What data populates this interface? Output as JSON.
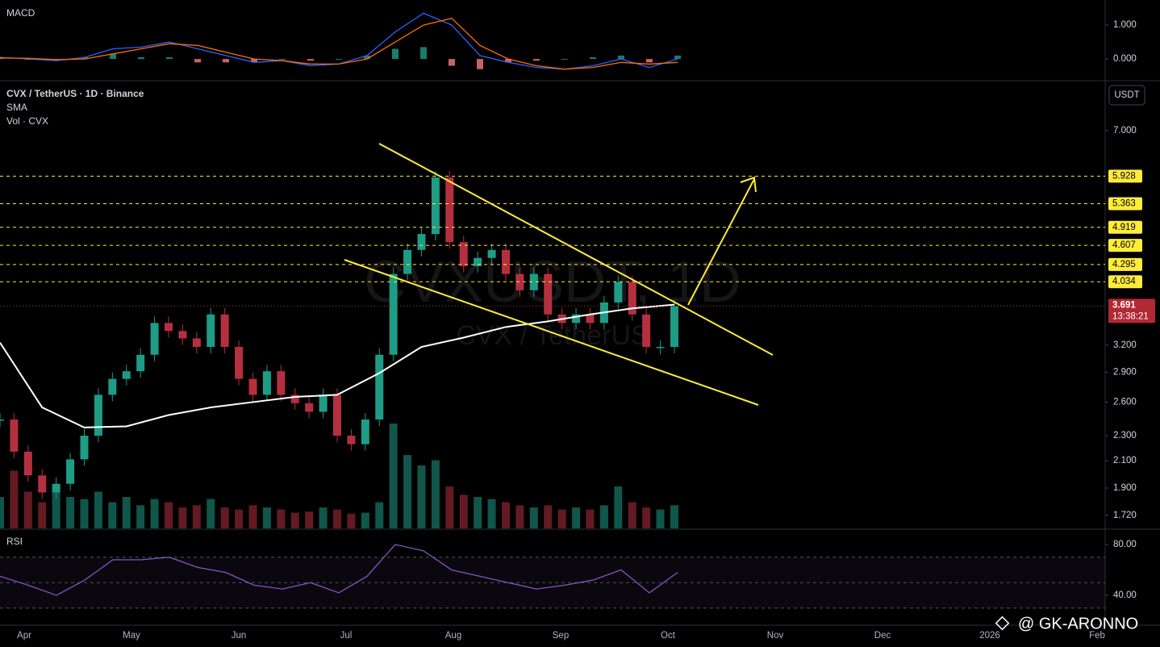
{
  "chart_data": {
    "type": "candlestick",
    "title": "CVX / TetherUS · 1D · Binance",
    "indicator_labels": [
      "SMA",
      "Vol · CVX"
    ],
    "currency_button": "USDT",
    "watermark": "CVXUSDT, 1D",
    "watermark_subtitle": "CVX / TetherUS",
    "credit": "@ GK-ARONNO",
    "months": [
      "Apr",
      "May",
      "Jun",
      "Jul",
      "Aug",
      "Sep",
      "Oct",
      "Nov",
      "Dec",
      "2026",
      "Feb"
    ],
    "up_color": "#1e9c86",
    "down_color": "#b5303f",
    "price": {
      "log_scale": true,
      "ylim": [
        1.64,
        8.4
      ],
      "yticks": [
        {
          "value": 7,
          "label": "7.000"
        },
        {
          "value": 3.2,
          "label": "3.200"
        },
        {
          "value": 2.9,
          "label": "2.900"
        },
        {
          "value": 2.6,
          "label": "2.600"
        },
        {
          "value": 2.3,
          "label": "2.300"
        },
        {
          "value": 2.1,
          "label": "2.100"
        },
        {
          "value": 1.9,
          "label": "1.900"
        },
        {
          "value": 1.72,
          "label": "1.720"
        }
      ],
      "levels": [
        5.928,
        5.363,
        4.919,
        4.607,
        4.295,
        4.034
      ],
      "level_color": "#ffeb3b",
      "last_price": 3.691,
      "countdown": "13:38:21",
      "close": [
        2.44,
        2.17,
        1.99,
        1.87,
        1.93,
        2.11,
        2.3,
        2.67,
        2.83,
        2.91,
        3.09,
        3.47,
        3.37,
        3.28,
        3.18,
        3.58,
        3.18,
        2.83,
        2.67,
        2.91,
        2.67,
        2.59,
        2.51,
        2.67,
        2.3,
        2.23,
        2.44,
        3.09,
        4.15,
        4.53,
        4.8,
        5.9,
        4.66,
        4.27,
        4.4,
        4.53,
        4.15,
        3.91,
        4.15,
        3.58,
        3.47,
        3.58,
        3.47,
        3.74,
        4.03,
        3.58,
        3.18,
        3.18,
        3.69
      ],
      "volume": [
        30,
        55,
        35,
        25,
        40,
        30,
        28,
        35,
        25,
        30,
        22,
        28,
        25,
        20,
        22,
        28,
        20,
        18,
        22,
        20,
        18,
        15,
        16,
        20,
        18,
        14,
        15,
        25,
        100,
        70,
        60,
        65,
        40,
        32,
        30,
        28,
        25,
        22,
        20,
        22,
        18,
        20,
        18,
        22,
        40,
        25,
        20,
        18,
        22
      ],
      "sma": [
        3.23,
        2.55,
        2.37,
        2.38,
        2.48,
        2.55,
        2.6,
        2.65,
        2.67,
        2.89,
        3.18,
        3.29,
        3.42,
        3.49,
        3.58,
        3.66,
        3.71
      ],
      "sma_color": "#ffffff"
    },
    "macd": {
      "title": "MACD",
      "ylim": [
        -0.64,
        1.74
      ],
      "yticks": [
        {
          "value": 1,
          "label": "1.000"
        },
        {
          "value": 0,
          "label": "0.000"
        }
      ],
      "series": [
        {
          "name": "MACD",
          "color": "#2962ff",
          "values": [
            0.05,
            0.0,
            -0.05,
            0.05,
            0.3,
            0.35,
            0.5,
            0.3,
            0.1,
            -0.1,
            -0.05,
            -0.2,
            -0.15,
            0.1,
            0.8,
            1.35,
            1.0,
            0.1,
            -0.1,
            -0.25,
            -0.3,
            -0.2,
            0.0,
            -0.25,
            0.0
          ]
        },
        {
          "name": "Signal",
          "color": "#ff6d00",
          "values": [
            0.03,
            0.02,
            -0.02,
            0.0,
            0.15,
            0.3,
            0.45,
            0.4,
            0.2,
            0.0,
            -0.05,
            -0.15,
            -0.15,
            0.0,
            0.5,
            1.0,
            1.2,
            0.4,
            0.0,
            -0.2,
            -0.3,
            -0.25,
            -0.1,
            -0.15,
            -0.1
          ]
        }
      ],
      "histogram": [
        0.02,
        -0.02,
        -0.03,
        0.05,
        0.15,
        0.05,
        0.05,
        -0.1,
        -0.1,
        -0.1,
        0,
        -0.05,
        0,
        0.1,
        0.3,
        0.35,
        -0.2,
        -0.3,
        -0.1,
        -0.05,
        0,
        0.05,
        0.1,
        -0.1,
        0.1
      ]
    },
    "rsi": {
      "title": "RSI",
      "ylim": [
        16.5,
        91.4
      ],
      "yticks": [
        {
          "value": 80,
          "label": "80.00"
        },
        {
          "value": 40,
          "label": "40.00"
        }
      ],
      "bands": [
        70,
        50,
        30
      ],
      "color": "#7e57c2",
      "values": [
        55,
        48,
        40,
        52,
        68,
        68,
        70,
        62,
        58,
        48,
        45,
        50,
        42,
        55,
        80,
        75,
        60,
        55,
        50,
        45,
        48,
        52,
        60,
        42,
        58
      ]
    }
  }
}
